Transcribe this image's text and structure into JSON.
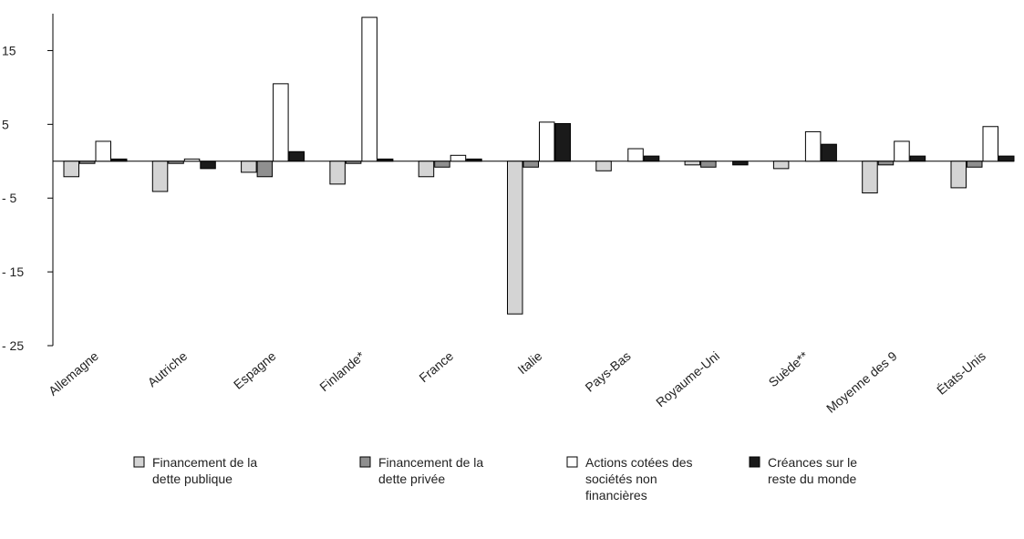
{
  "chart_data": {
    "type": "bar",
    "categories": [
      "Allemagne",
      "Autriche",
      "Espagne",
      "Finlande*",
      "France",
      "Italie",
      "Pays-Bas",
      "Royaume-Uni",
      "Suède**",
      "Moyenne des 9",
      "États-Unis"
    ],
    "series": [
      {
        "name": "Financement de la dette publique",
        "color": "#d4d4d4",
        "values": [
          -2.1,
          -4.1,
          -1.5,
          -3.1,
          -2.1,
          -20.7,
          -1.3,
          -0.5,
          -1.0,
          -4.3,
          -3.6
        ]
      },
      {
        "name": "Financement de la dette privée",
        "color": "#8f8f8f",
        "values": [
          -0.3,
          -0.3,
          -2.1,
          -0.3,
          -0.8,
          -0.8,
          null,
          -0.8,
          null,
          -0.5,
          -0.8
        ]
      },
      {
        "name": "Actions cotées des sociétés non financières",
        "color": "#ffffff",
        "values": [
          2.7,
          0.3,
          10.5,
          19.5,
          0.8,
          5.3,
          1.7,
          null,
          4.0,
          2.7,
          4.7
        ]
      },
      {
        "name": "Créances sur le reste du monde",
        "color": "#1a1a1a",
        "values": [
          0.3,
          -1.0,
          1.3,
          0.3,
          0.3,
          5.1,
          0.7,
          -0.5,
          2.3,
          0.7,
          0.7
        ]
      }
    ],
    "ylim": [
      -25,
      20
    ],
    "yticks": [
      15,
      5,
      {
        "value": -5,
        "label": "- 5"
      },
      {
        "value": -15,
        "label": "- 15"
      },
      {
        "value": -25,
        "label": "- 25"
      }
    ]
  }
}
